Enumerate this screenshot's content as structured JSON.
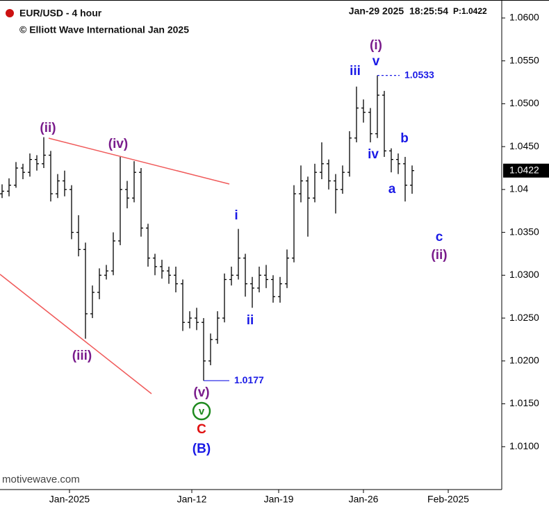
{
  "chart_data": {
    "type": "ohlc",
    "title": "EUR/USD - 4 hour",
    "subtitle": "© Elliott Wave International Jan 2025",
    "timestamp": "Jan-29 2025  18:25:54",
    "price_label": "P:1.0422",
    "watermark": "motivewave.com",
    "color": "#000000",
    "categories": [
      null,
      null,
      null,
      null,
      null,
      null,
      null,
      null,
      null,
      null,
      null,
      null,
      null,
      null,
      null,
      null,
      null,
      null,
      null,
      null,
      null,
      null,
      null,
      null,
      null,
      null,
      null,
      null,
      null,
      null,
      null,
      null,
      null,
      null,
      null,
      null,
      null,
      null,
      null,
      null,
      null,
      null,
      null,
      null,
      null,
      null,
      null,
      null,
      null,
      null,
      null,
      null,
      null,
      null,
      null,
      null,
      null,
      null,
      null,
      null
    ],
    "open": [
      1.0395,
      1.0398,
      1.0405,
      1.0425,
      1.042,
      1.0435,
      1.043,
      1.044,
      1.0395,
      1.041,
      1.04,
      1.035,
      1.033,
      1.0255,
      1.028,
      1.03,
      1.0305,
      1.034,
      1.04,
      1.039,
      1.042,
      1.0355,
      1.032,
      1.031,
      1.0305,
      1.03,
      1.029,
      1.0245,
      1.025,
      1.0245,
      1.02,
      1.0225,
      1.025,
      1.0295,
      1.03,
      1.032,
      1.029,
      1.0285,
      1.03,
      1.0295,
      1.0275,
      1.029,
      1.032,
      1.0395,
      1.041,
      1.039,
      1.042,
      1.043,
      1.041,
      1.04,
      1.042,
      1.046,
      1.0495,
      1.049,
      1.0465,
      1.051,
      1.0445,
      1.0435,
      1.043,
      1.0405
    ],
    "high": [
      1.0406,
      1.0413,
      1.0432,
      1.043,
      1.0442,
      1.044,
      1.0461,
      1.0445,
      1.0418,
      1.0422,
      1.0405,
      1.037,
      1.0338,
      1.0288,
      1.0308,
      1.0312,
      1.035,
      1.0438,
      1.041,
      1.0433,
      1.0425,
      1.036,
      1.0325,
      1.0318,
      1.031,
      1.031,
      1.0295,
      1.0258,
      1.0262,
      1.025,
      1.0232,
      1.0258,
      1.0302,
      1.031,
      1.0354,
      1.0325,
      1.0298,
      1.031,
      1.0312,
      1.03,
      1.0298,
      1.033,
      1.0405,
      1.0428,
      1.0415,
      1.043,
      1.0455,
      1.0435,
      1.0418,
      1.0428,
      1.0468,
      1.052,
      1.0505,
      1.0495,
      1.0533,
      1.0515,
      1.0448,
      1.0442,
      1.0438,
      1.0428
    ],
    "low": [
      1.039,
      1.0392,
      1.0402,
      1.0412,
      1.0415,
      1.0422,
      1.0425,
      1.0386,
      1.039,
      1.0392,
      1.0342,
      1.0322,
      1.0226,
      1.025,
      1.0272,
      1.0295,
      1.03,
      1.0335,
      1.0378,
      1.0385,
      1.0345,
      1.031,
      1.03,
      1.0296,
      1.029,
      1.028,
      1.0235,
      1.0238,
      1.0236,
      1.0177,
      1.0195,
      1.022,
      1.0245,
      1.0288,
      1.0295,
      1.0275,
      1.0262,
      1.028,
      1.0285,
      1.0268,
      1.0268,
      1.0285,
      1.0315,
      1.0385,
      1.0345,
      1.0385,
      1.0412,
      1.04,
      1.0372,
      1.0395,
      1.0415,
      1.0455,
      1.0478,
      1.0455,
      1.046,
      1.0438,
      1.042,
      1.0418,
      1.0386,
      1.0395
    ],
    "close": [
      1.0398,
      1.0405,
      1.0425,
      1.042,
      1.0435,
      1.043,
      1.044,
      1.0395,
      1.041,
      1.04,
      1.035,
      1.033,
      1.0255,
      1.028,
      1.03,
      1.0305,
      1.034,
      1.04,
      1.039,
      1.042,
      1.0355,
      1.032,
      1.031,
      1.0305,
      1.03,
      1.029,
      1.0245,
      1.025,
      1.0245,
      1.02,
      1.0225,
      1.025,
      1.0295,
      1.03,
      1.032,
      1.029,
      1.0285,
      1.03,
      1.0295,
      1.0275,
      1.029,
      1.032,
      1.0395,
      1.041,
      1.039,
      1.042,
      1.043,
      1.041,
      1.04,
      1.042,
      1.046,
      1.0495,
      1.049,
      1.0465,
      1.051,
      1.0445,
      1.0435,
      1.043,
      1.0405,
      1.0422
    ],
    "xlim": [
      -0.3,
      71.9
    ],
    "xticks": [
      {
        "value": 9.7,
        "label": "Jan-2025"
      },
      {
        "value": 27.3,
        "label": "Jan-12"
      },
      {
        "value": 39.8,
        "label": "Jan-19"
      },
      {
        "value": 52,
        "label": "Jan-26"
      },
      {
        "value": 64.2,
        "label": "Feb-2025"
      }
    ],
    "ylim": [
      1.005,
      1.0621
    ],
    "yticks": [
      {
        "value": 1.06,
        "label": "1.0600"
      },
      {
        "value": 1.055,
        "label": "1.0550"
      },
      {
        "value": 1.05,
        "label": "1.0500"
      },
      {
        "value": 1.045,
        "label": "1.0450"
      },
      1.04,
      {
        "value": 1.035,
        "label": "1.0350"
      },
      {
        "value": 1.03,
        "label": "1.0300"
      },
      {
        "value": 1.025,
        "label": "1.0250"
      },
      {
        "value": 1.02,
        "label": "1.0200"
      },
      {
        "value": 1.015,
        "label": "1.0150"
      },
      {
        "value": 1.01,
        "label": "1.0100"
      }
    ],
    "last_price": 1.0422,
    "levels": [
      1.0533,
      1.0177
    ],
    "level_color": "#1a1ae6",
    "annotations": [
      {
        "text": "(ii)",
        "color": "#7a1c8c"
      },
      {
        "text": "(iv)",
        "color": "#7a1c8c"
      },
      {
        "text": "(iii)",
        "color": "#7a1c8c"
      },
      {
        "text": "(v)",
        "color": "#7a1c8c"
      },
      {
        "text": "v",
        "color": "#1e8a1e",
        "circled": true
      },
      {
        "text": "C",
        "color": "#e01010"
      },
      {
        "text": "(B)",
        "color": "#1a1ae6"
      },
      {
        "text": "i",
        "color": "#1a1ae6"
      },
      {
        "text": "ii",
        "color": "#1a1ae6"
      },
      {
        "text": "iii",
        "color": "#1a1ae6"
      },
      {
        "text": "v",
        "color": "#1a1ae6"
      },
      {
        "text": "(i)",
        "color": "#7a1c8c"
      },
      {
        "text": "iv",
        "color": "#1a1ae6"
      },
      {
        "text": "a",
        "color": "#1a1ae6"
      },
      {
        "text": "b",
        "color": "#1a1ae6"
      },
      {
        "text": "c",
        "color": "#1a1ae6"
      },
      {
        "text": "(ii)",
        "color": "#7a1c8c"
      }
    ]
  }
}
